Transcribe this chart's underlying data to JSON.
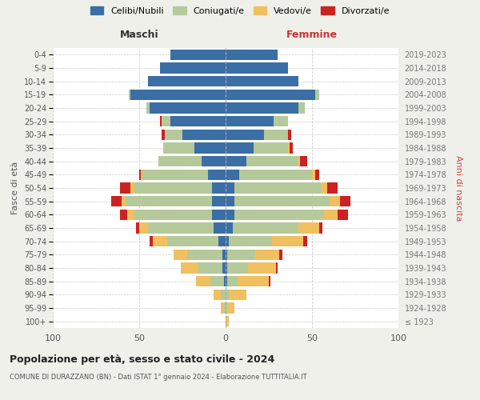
{
  "age_groups": [
    "100+",
    "95-99",
    "90-94",
    "85-89",
    "80-84",
    "75-79",
    "70-74",
    "65-69",
    "60-64",
    "55-59",
    "50-54",
    "45-49",
    "40-44",
    "35-39",
    "30-34",
    "25-29",
    "20-24",
    "15-19",
    "10-14",
    "5-9",
    "0-4"
  ],
  "birth_years": [
    "≤ 1923",
    "1924-1928",
    "1929-1933",
    "1934-1938",
    "1939-1943",
    "1944-1948",
    "1949-1953",
    "1954-1958",
    "1959-1963",
    "1964-1968",
    "1969-1973",
    "1974-1978",
    "1979-1983",
    "1984-1988",
    "1989-1993",
    "1994-1998",
    "1999-2003",
    "2004-2008",
    "2009-2013",
    "2014-2018",
    "2019-2023"
  ],
  "colors": {
    "celibi": "#3a6ea5",
    "coniugati": "#b5c99a",
    "vedovi": "#f0c060",
    "divorziati": "#cc2222"
  },
  "male": {
    "celibi": [
      0,
      0,
      0,
      1,
      2,
      2,
      4,
      7,
      8,
      8,
      8,
      10,
      14,
      18,
      25,
      32,
      44,
      55,
      45,
      38,
      32
    ],
    "coniugati": [
      0,
      1,
      3,
      8,
      14,
      20,
      30,
      38,
      45,
      50,
      45,
      38,
      25,
      18,
      10,
      5,
      2,
      1,
      0,
      0,
      0
    ],
    "vedovi": [
      0,
      2,
      4,
      8,
      10,
      8,
      8,
      5,
      4,
      2,
      2,
      1,
      0,
      0,
      0,
      0,
      0,
      0,
      0,
      0,
      0
    ],
    "divorziati": [
      0,
      0,
      0,
      0,
      0,
      0,
      2,
      2,
      4,
      6,
      6,
      1,
      0,
      0,
      2,
      1,
      0,
      0,
      0,
      0,
      0
    ]
  },
  "female": {
    "celibi": [
      0,
      0,
      0,
      1,
      1,
      1,
      2,
      4,
      5,
      5,
      5,
      8,
      12,
      16,
      22,
      28,
      42,
      52,
      42,
      36,
      30
    ],
    "coniugati": [
      0,
      1,
      2,
      6,
      12,
      16,
      25,
      38,
      52,
      55,
      50,
      42,
      30,
      20,
      14,
      8,
      4,
      2,
      0,
      0,
      0
    ],
    "vedovi": [
      2,
      4,
      10,
      18,
      16,
      14,
      18,
      12,
      8,
      6,
      4,
      2,
      1,
      1,
      0,
      0,
      0,
      0,
      0,
      0,
      0
    ],
    "divorziati": [
      0,
      0,
      0,
      1,
      1,
      2,
      2,
      2,
      6,
      6,
      6,
      2,
      4,
      2,
      2,
      0,
      0,
      0,
      0,
      0,
      0
    ]
  },
  "xlim": 100,
  "title": "Popolazione per età, sesso e stato civile - 2024",
  "subtitle": "COMUNE DI DURAZZANO (BN) - Dati ISTAT 1° gennaio 2024 - Elaborazione TUTTITALIA.IT",
  "xlabel_left": "Maschi",
  "xlabel_right": "Femmine",
  "ylabel_left": "Fasce di età",
  "ylabel_right": "Anni di nascita",
  "bg_color": "#f0f0eb",
  "plot_bg_color": "#ffffff",
  "legend_labels": [
    "Celibi/Nubili",
    "Coniugati/e",
    "Vedovi/e",
    "Divorzati/e"
  ]
}
